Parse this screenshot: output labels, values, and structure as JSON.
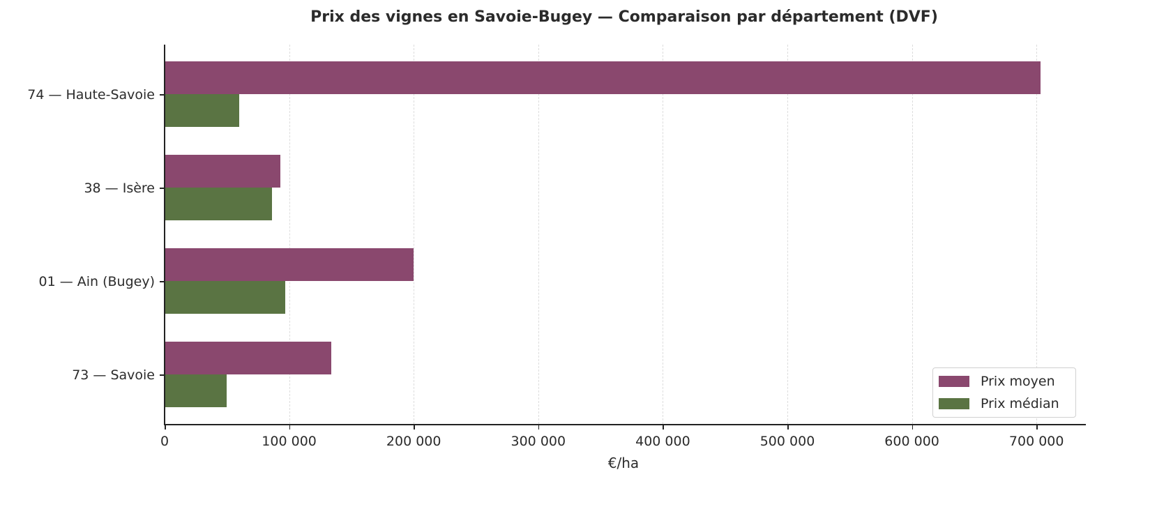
{
  "chart_data": {
    "type": "bar",
    "orientation": "horizontal",
    "title": "Prix des vignes en Savoie-Bugey — Comparaison par département (DVF)",
    "xlabel": "€/ha",
    "ylabel": "",
    "xlim": [
      0,
      740000
    ],
    "xticks": [
      0,
      100000,
      200000,
      300000,
      400000,
      500000,
      600000,
      700000
    ],
    "xtick_labels": [
      "0",
      "100 000",
      "200 000",
      "300 000",
      "400 000",
      "500 000",
      "600 000",
      "700 000"
    ],
    "grid": "x dashed",
    "legend_position": "lower right",
    "categories": [
      "74 — Haute-Savoie",
      "38 — Isère",
      "01 — Ain (Bugey)",
      "73 — Savoie"
    ],
    "series": [
      {
        "name": "Prix moyen",
        "color": "#8a486e",
        "values": [
          703000,
          93000,
          200000,
          134000
        ]
      },
      {
        "name": "Prix médian",
        "color": "#5a7443",
        "values": [
          60000,
          86000,
          97000,
          50000
        ]
      }
    ]
  }
}
